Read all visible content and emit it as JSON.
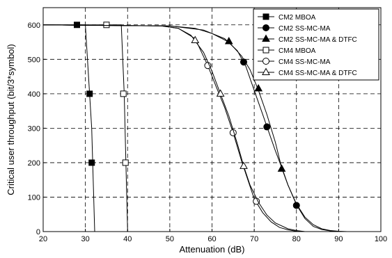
{
  "chart_data": {
    "type": "line",
    "xlabel": "Attenuation (dB)",
    "ylabel": "Critical user throughput (bit/3*symbol)",
    "xlim": [
      20,
      100
    ],
    "ylim": [
      0,
      650
    ],
    "xticks": [
      20,
      30,
      40,
      50,
      60,
      70,
      80,
      90,
      100
    ],
    "yticks": [
      0,
      100,
      200,
      300,
      400,
      500,
      600
    ],
    "grid": "dashed",
    "legend_position": "top-right",
    "series": [
      {
        "name": "CM2 MBOA",
        "marker": "square-filled",
        "line": [
          [
            20,
            600
          ],
          [
            30,
            600
          ],
          [
            31.5,
            300
          ],
          [
            32.2,
            0
          ]
        ],
        "markers": [
          [
            28,
            600
          ],
          [
            31,
            400
          ],
          [
            31.5,
            200
          ]
        ]
      },
      {
        "name": "CM2 SS-MC-MA",
        "marker": "circle-filled",
        "line": [
          [
            20,
            600
          ],
          [
            50,
            597
          ],
          [
            58,
            585
          ],
          [
            63,
            560
          ],
          [
            66,
            525
          ],
          [
            68,
            480
          ],
          [
            70,
            410
          ],
          [
            72,
            340
          ],
          [
            73,
            305
          ],
          [
            75,
            235
          ],
          [
            77,
            170
          ],
          [
            78,
            135
          ],
          [
            80,
            78
          ],
          [
            82,
            38
          ],
          [
            84,
            15
          ],
          [
            86,
            6
          ],
          [
            88,
            2
          ],
          [
            90,
            0
          ]
        ],
        "markers": [
          [
            67.5,
            492
          ],
          [
            73,
            304
          ],
          [
            80,
            76
          ]
        ]
      },
      {
        "name": "CM2 SS-MC-MA & DTFC",
        "marker": "triangle-filled",
        "line": [
          [
            20,
            600
          ],
          [
            50,
            597
          ],
          [
            56,
            590
          ],
          [
            60,
            575
          ],
          [
            64,
            550
          ],
          [
            67,
            510
          ],
          [
            69,
            470
          ],
          [
            71,
            410
          ],
          [
            73,
            340
          ],
          [
            75,
            260
          ],
          [
            76.5,
            185
          ],
          [
            78,
            135
          ],
          [
            80,
            80
          ],
          [
            82,
            42
          ],
          [
            84,
            20
          ],
          [
            86,
            8
          ],
          [
            88,
            3
          ],
          [
            90,
            1
          ],
          [
            92,
            0
          ]
        ],
        "markers": [
          [
            64,
            552
          ],
          [
            71,
            415
          ],
          [
            76.5,
            182
          ]
        ]
      },
      {
        "name": "CM4 MBOA",
        "marker": "square-open",
        "line": [
          [
            20,
            600
          ],
          [
            38.5,
            600
          ],
          [
            39.2,
            400
          ],
          [
            39.6,
            200
          ],
          [
            40,
            0
          ]
        ],
        "markers": [
          [
            35,
            600
          ],
          [
            39,
            400
          ],
          [
            39.5,
            200
          ]
        ]
      },
      {
        "name": "CM4 SS-MC-MA",
        "marker": "circle-open",
        "line": [
          [
            20,
            600
          ],
          [
            48,
            597
          ],
          [
            52,
            590
          ],
          [
            56,
            560
          ],
          [
            59,
            482
          ],
          [
            61,
            420
          ],
          [
            63,
            360
          ],
          [
            65,
            287
          ],
          [
            67,
            205
          ],
          [
            68.5,
            150
          ],
          [
            70,
            95
          ],
          [
            72,
            55
          ],
          [
            74,
            28
          ],
          [
            76,
            12
          ],
          [
            78,
            5
          ],
          [
            80,
            1
          ],
          [
            82,
            0
          ]
        ],
        "markers": [
          [
            59,
            482
          ],
          [
            65,
            287
          ],
          [
            70.5,
            88
          ]
        ]
      },
      {
        "name": "CM4 SS-MC-MA & DTFC",
        "marker": "triangle-open",
        "line": [
          [
            20,
            600
          ],
          [
            48,
            597
          ],
          [
            52,
            590
          ],
          [
            55,
            570
          ],
          [
            58,
            520
          ],
          [
            60,
            465
          ],
          [
            62,
            400
          ],
          [
            64,
            335
          ],
          [
            66,
            255
          ],
          [
            67.5,
            190
          ],
          [
            69,
            135
          ],
          [
            71,
            85
          ],
          [
            73,
            48
          ],
          [
            75,
            25
          ],
          [
            78,
            8
          ],
          [
            80,
            3
          ],
          [
            82,
            0
          ]
        ],
        "markers": [
          [
            56,
            555
          ],
          [
            62,
            400
          ],
          [
            67.5,
            190
          ]
        ]
      }
    ]
  }
}
